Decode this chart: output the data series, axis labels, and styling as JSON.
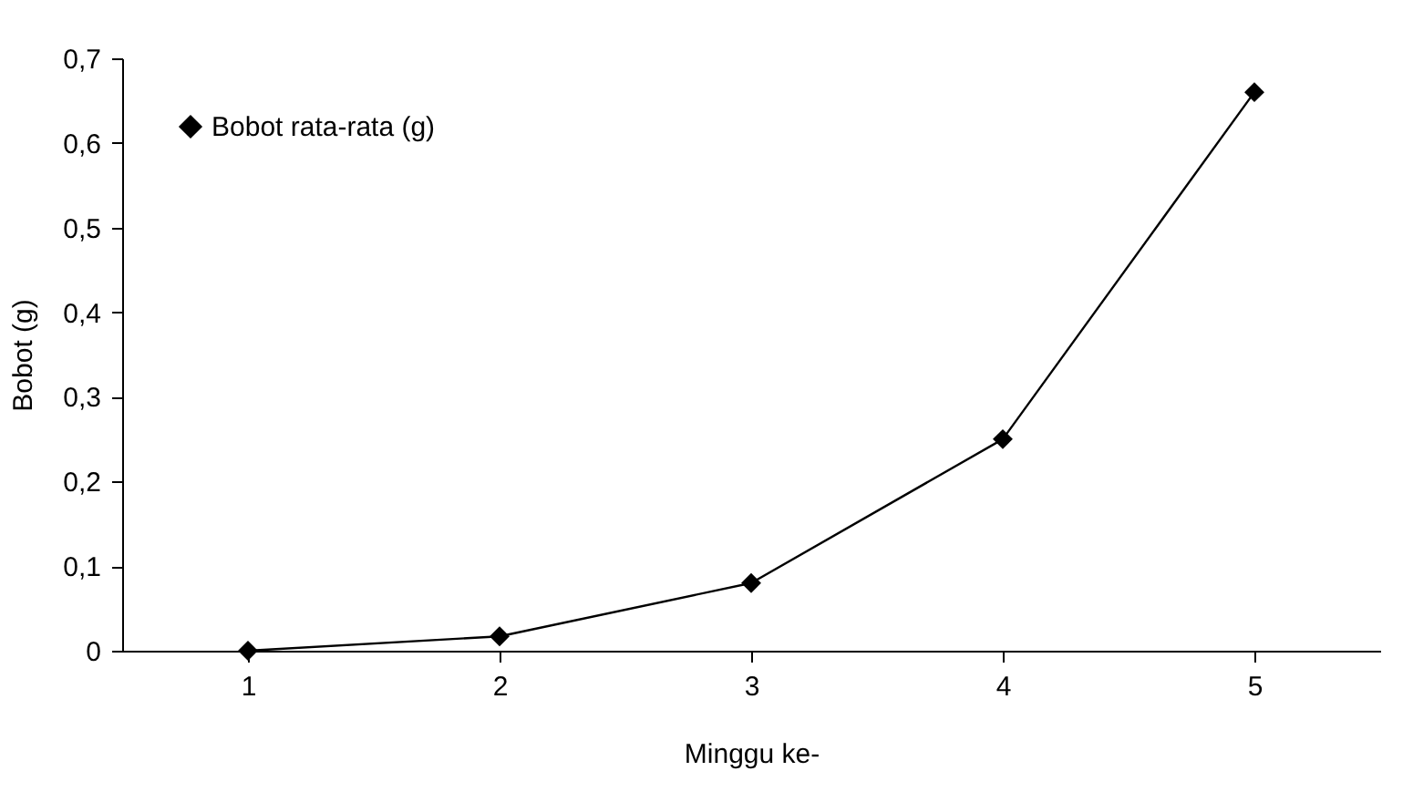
{
  "chart_data": {
    "type": "line",
    "xlabel": "Minggu ke-",
    "ylabel": "Bobot (g)",
    "categories": [
      "1",
      "2",
      "3",
      "4",
      "5"
    ],
    "series": [
      {
        "name": "Bobot rata-rata (g)",
        "color": "#000000",
        "values": [
          0.0,
          0.017,
          0.08,
          0.25,
          0.66
        ]
      }
    ],
    "ylim": [
      0,
      0.7
    ],
    "yticks": [
      {
        "value": 0,
        "label": "0"
      },
      {
        "value": 0.1,
        "label": "0,1"
      },
      {
        "value": 0.2,
        "label": "0,2"
      },
      {
        "value": 0.3,
        "label": "0,3"
      },
      {
        "value": 0.4,
        "label": "0,4"
      },
      {
        "value": 0.5,
        "label": "0,5"
      },
      {
        "value": 0.6,
        "label": "0,6"
      },
      {
        "value": 0.7,
        "label": "0,7"
      }
    ],
    "grid": false,
    "legend": "top left",
    "marker": "diamond",
    "line_style": "solid"
  }
}
